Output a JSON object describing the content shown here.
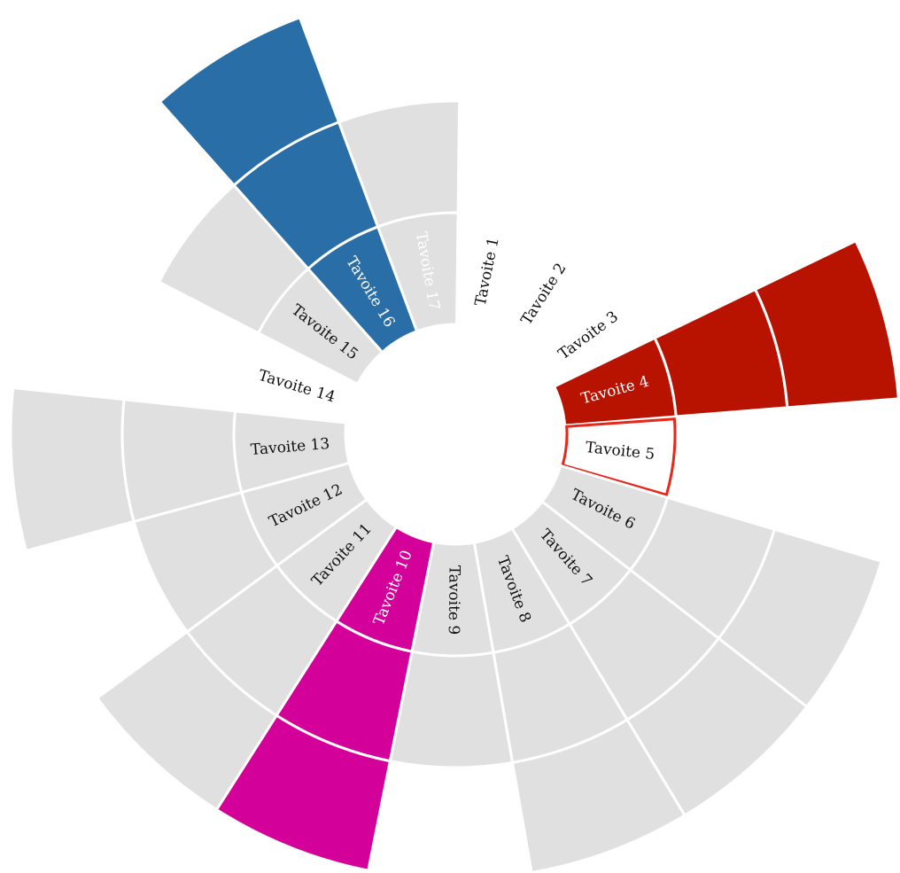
{
  "sectors": [
    {
      "label": "Tavoite 1",
      "rings": 0
    },
    {
      "label": "Tavoite 2",
      "rings": 0
    },
    {
      "label": "Tavoite 3",
      "rings": 0
    },
    {
      "label": "Tavoite 4",
      "rings": 3,
      "color": "#b81200",
      "text_color": "#ffffff"
    },
    {
      "label": "Tavoite 5",
      "rings": 1,
      "color": "#ffffff",
      "outline": "#e8261a"
    },
    {
      "label": "Tavoite 6",
      "rings": 3,
      "color": "#e0e0e0"
    },
    {
      "label": "Tavoite 7",
      "rings": 3,
      "color": "#e0e0e0"
    },
    {
      "label": "Tavoite 8",
      "rings": 3,
      "color": "#e0e0e0"
    },
    {
      "label": "Tavoite 9",
      "rings": 2,
      "color": "#e0e0e0"
    },
    {
      "label": "Tavoite 10",
      "rings": 3,
      "color": "#d4009a",
      "text_color": "#ffffff"
    },
    {
      "label": "Tavoite 11",
      "rings": 3,
      "color": "#e0e0e0"
    },
    {
      "label": "Tavoite 12",
      "rings": 2,
      "color": "#e0e0e0"
    },
    {
      "label": "Tavoite 13",
      "rings": 3,
      "color": "#e0e0e0"
    },
    {
      "label": "Tavoite 14",
      "rings": 0
    },
    {
      "label": "Tavoite 15",
      "rings": 2,
      "color": "#e0e0e0"
    },
    {
      "label": "Tavoite 16",
      "rings": 3,
      "color": "#2a6ea8",
      "text_color": "#ffffff"
    },
    {
      "label": "Tavoite 17",
      "rings": 2,
      "color": "#e0e0e0",
      "text_color": "#ffffff"
    }
  ]
}
